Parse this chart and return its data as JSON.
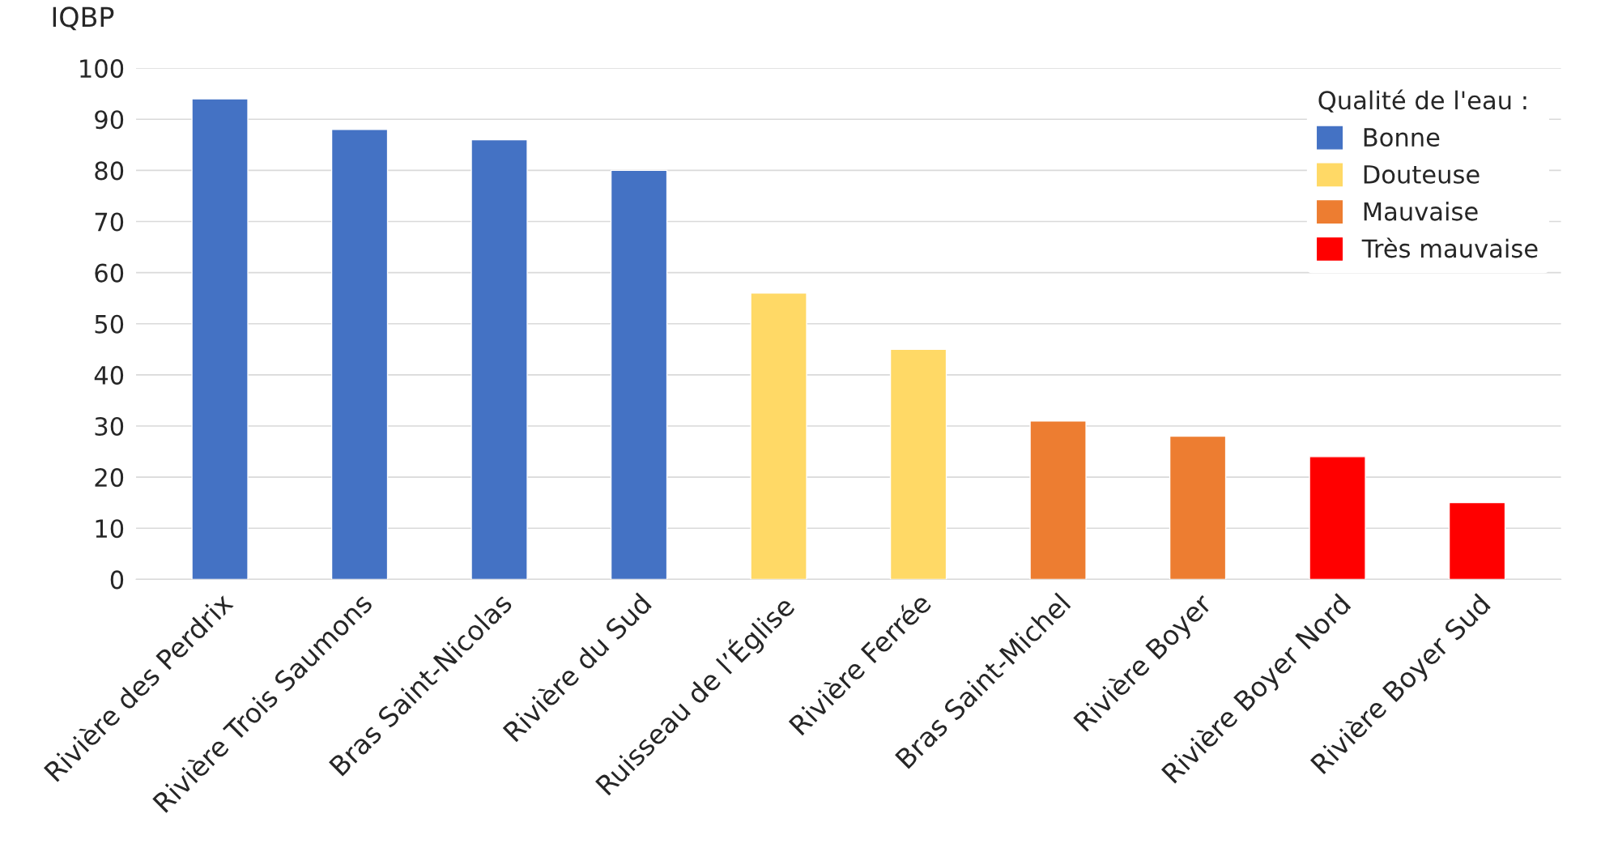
{
  "chart_data": {
    "type": "bar",
    "ylabel": "IQBP",
    "legend_title": "Qualité de l'eau :",
    "categories": [
      "Rivière des Perdrix",
      "Rivière Trois Saumons",
      "Bras Saint-Nicolas",
      "Rivière du Sud",
      "Ruisseau de l’Église",
      "Rivière Ferrée",
      "Bras Saint-Michel",
      "Rivière Boyer",
      "Rivière Boyer Nord",
      "Rivière Boyer Sud"
    ],
    "series": [
      {
        "name": "Bonne",
        "color": "#4472c4",
        "values": [
          94,
          88,
          86,
          80,
          null,
          null,
          null,
          null,
          null,
          null
        ]
      },
      {
        "name": "Douteuse",
        "color": "#ffd966",
        "values": [
          null,
          null,
          null,
          null,
          56,
          45,
          null,
          null,
          null,
          null
        ]
      },
      {
        "name": "Mauvaise",
        "color": "#ed7d31",
        "values": [
          null,
          null,
          null,
          null,
          null,
          null,
          31,
          28,
          null,
          null
        ]
      },
      {
        "name": "Très mauvaise",
        "color": "#ff0000",
        "values": [
          null,
          null,
          null,
          null,
          null,
          null,
          null,
          null,
          24,
          15
        ]
      }
    ],
    "ylim": [
      0,
      100
    ],
    "yticks": [
      0,
      10,
      20,
      30,
      40,
      50,
      60,
      70,
      80,
      90,
      100
    ],
    "grid": "y",
    "legend": "top right"
  }
}
